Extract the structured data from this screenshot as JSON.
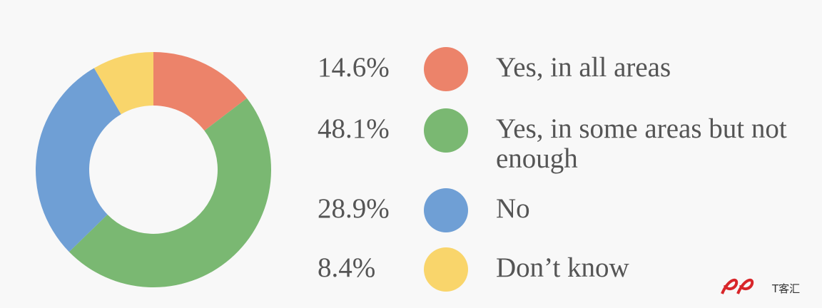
{
  "chart_data": {
    "type": "donut",
    "categories": [
      "Yes, in all areas",
      "Yes, in some areas but not enough",
      "No",
      "Don’t know"
    ],
    "values": [
      14.6,
      48.1,
      28.9,
      8.4
    ],
    "value_labels": [
      "14.6%",
      "48.1%",
      "28.9%",
      "8.4%"
    ],
    "colors": [
      "#ec836a",
      "#7ab872",
      "#6f9fd5",
      "#f9d56b"
    ]
  },
  "watermark": "T客汇"
}
